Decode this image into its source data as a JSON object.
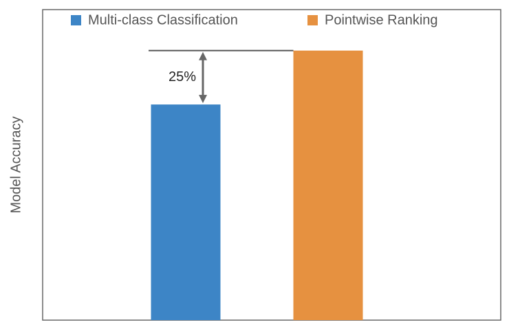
{
  "chart_data": {
    "type": "bar",
    "y_label": "Model Accuracy",
    "categories": [
      null
    ],
    "series": [
      {
        "name": "Multi-class Classification",
        "color": "#3d85c6",
        "values": [
          100
        ]
      },
      {
        "name": "Pointwise Ranking",
        "color": "#e69140",
        "values": [
          125
        ]
      }
    ],
    "annotation": "25%",
    "ylim": [
      0,
      144
    ]
  }
}
